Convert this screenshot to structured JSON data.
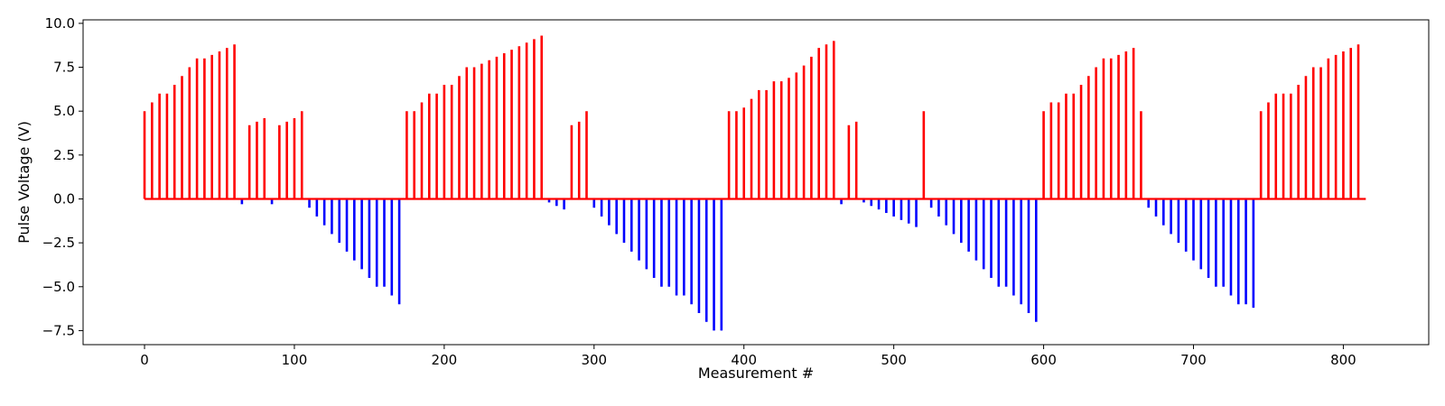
{
  "chart_data": {
    "type": "stem",
    "xlabel": "Measurement #",
    "ylabel": "Pulse Voltage (V)",
    "xlim": [
      -41,
      857
    ],
    "ylim": [
      -8.3,
      10.2
    ],
    "x_ticks": [
      0,
      100,
      200,
      300,
      400,
      500,
      600,
      700,
      800
    ],
    "y_ticks": [
      -7.5,
      -5.0,
      -2.5,
      0.0,
      2.5,
      5.0,
      7.5,
      10.0
    ],
    "x_tick_labels": [
      "0",
      "100",
      "200",
      "300",
      "400",
      "500",
      "600",
      "700",
      "800"
    ],
    "y_tick_labels": [
      "−7.5",
      "−5.0",
      "−2.5",
      "0.0",
      "2.5",
      "5.0",
      "7.5",
      "10.0"
    ],
    "baseline": {
      "y": 0,
      "x_start": 0,
      "x_end": 815,
      "color": "#ff0000"
    },
    "grid": false,
    "colors": {
      "positive": "#ff0000",
      "negative": "#0000ff"
    },
    "series": [
      {
        "color": "#ff0000",
        "x": [
          0,
          5,
          10,
          15,
          20,
          25,
          30,
          35,
          40,
          45,
          50,
          55,
          60
        ],
        "y": [
          5.0,
          5.5,
          6.0,
          6.0,
          6.5,
          7.0,
          7.5,
          8.0,
          8.0,
          8.2,
          8.4,
          8.6,
          8.8
        ]
      },
      {
        "color": "#0000ff",
        "x": [
          65
        ],
        "y": [
          -0.3
        ]
      },
      {
        "color": "#ff0000",
        "x": [
          70,
          75,
          80
        ],
        "y": [
          4.2,
          4.4,
          4.6
        ]
      },
      {
        "color": "#0000ff",
        "x": [
          85
        ],
        "y": [
          -0.3
        ]
      },
      {
        "color": "#ff0000",
        "x": [
          90,
          95,
          100,
          105
        ],
        "y": [
          4.2,
          4.4,
          4.6,
          5.0
        ]
      },
      {
        "color": "#0000ff",
        "x": [
          110,
          115,
          120,
          125,
          130,
          135,
          140,
          145,
          150,
          155,
          160,
          165,
          170
        ],
        "y": [
          -0.5,
          -1.0,
          -1.5,
          -2.0,
          -2.5,
          -3.0,
          -3.5,
          -4.0,
          -4.5,
          -5.0,
          -5.0,
          -5.5,
          -6.0
        ]
      },
      {
        "color": "#ff0000",
        "x": [
          175,
          180,
          185,
          190,
          195,
          200,
          205,
          210,
          215,
          220,
          225,
          230,
          235,
          240,
          245,
          250,
          255,
          260,
          265
        ],
        "y": [
          5.0,
          5.0,
          5.5,
          6.0,
          6.0,
          6.5,
          6.5,
          7.0,
          7.5,
          7.5,
          7.7,
          7.9,
          8.1,
          8.3,
          8.5,
          8.7,
          8.9,
          9.1,
          9.3
        ]
      },
      {
        "color": "#0000ff",
        "x": [
          270,
          275,
          280
        ],
        "y": [
          -0.2,
          -0.4,
          -0.6
        ]
      },
      {
        "color": "#ff0000",
        "x": [
          285,
          290,
          295
        ],
        "y": [
          4.2,
          4.4,
          5.0
        ]
      },
      {
        "color": "#0000ff",
        "x": [
          300,
          305,
          310,
          315,
          320,
          325,
          330,
          335,
          340,
          345,
          350,
          355,
          360,
          365,
          370,
          375,
          380,
          385
        ],
        "y": [
          -0.5,
          -1.0,
          -1.5,
          -2.0,
          -2.5,
          -3.0,
          -3.5,
          -4.0,
          -4.5,
          -5.0,
          -5.0,
          -5.5,
          -5.5,
          -6.0,
          -6.5,
          -7.0,
          -7.5,
          -7.5
        ]
      },
      {
        "color": "#ff0000",
        "x": [
          390,
          395,
          400,
          405,
          410,
          415,
          420,
          425,
          430,
          435,
          440,
          445,
          450,
          455,
          460
        ],
        "y": [
          5.0,
          5.0,
          5.2,
          5.7,
          6.2,
          6.2,
          6.7,
          6.7,
          6.9,
          7.2,
          7.6,
          8.1,
          8.6,
          8.8,
          9.0
        ]
      },
      {
        "color": "#0000ff",
        "x": [
          465
        ],
        "y": [
          -0.3
        ]
      },
      {
        "color": "#ff0000",
        "x": [
          470,
          475
        ],
        "y": [
          4.2,
          4.4
        ]
      },
      {
        "color": "#0000ff",
        "x": [
          480,
          485,
          490,
          495,
          500,
          505,
          510,
          515
        ],
        "y": [
          -0.2,
          -0.4,
          -0.6,
          -0.8,
          -1.0,
          -1.2,
          -1.4,
          -1.6
        ]
      },
      {
        "color": "#ff0000",
        "x": [
          520
        ],
        "y": [
          5.0
        ]
      },
      {
        "color": "#0000ff",
        "x": [
          525,
          530,
          535,
          540,
          545,
          550,
          555,
          560,
          565,
          570,
          575,
          580,
          585,
          590,
          595
        ],
        "y": [
          -0.5,
          -1.0,
          -1.5,
          -2.0,
          -2.5,
          -3.0,
          -3.5,
          -4.0,
          -4.5,
          -5.0,
          -5.0,
          -5.5,
          -6.0,
          -6.5,
          -7.0
        ]
      },
      {
        "color": "#ff0000",
        "x": [
          600,
          605,
          610,
          615,
          620,
          625,
          630,
          635,
          640,
          645,
          650,
          655,
          660,
          665
        ],
        "y": [
          5.0,
          5.5,
          5.5,
          6.0,
          6.0,
          6.5,
          7.0,
          7.5,
          8.0,
          8.0,
          8.2,
          8.4,
          8.6,
          5.0
        ]
      },
      {
        "color": "#0000ff",
        "x": [
          670,
          675,
          680,
          685,
          690,
          695,
          700,
          705,
          710,
          715,
          720,
          725,
          730,
          735,
          740
        ],
        "y": [
          -0.5,
          -1.0,
          -1.5,
          -2.0,
          -2.5,
          -3.0,
          -3.5,
          -4.0,
          -4.5,
          -5.0,
          -5.0,
          -5.5,
          -6.0,
          -6.0,
          -6.2
        ]
      },
      {
        "color": "#ff0000",
        "x": [
          745,
          750,
          755,
          760,
          765,
          770,
          775,
          780,
          785,
          790,
          795,
          800,
          805,
          810
        ],
        "y": [
          5.0,
          5.5,
          6.0,
          6.0,
          6.0,
          6.5,
          7.0,
          7.5,
          7.5,
          8.0,
          8.2,
          8.4,
          8.6,
          8.8
        ]
      }
    ]
  }
}
